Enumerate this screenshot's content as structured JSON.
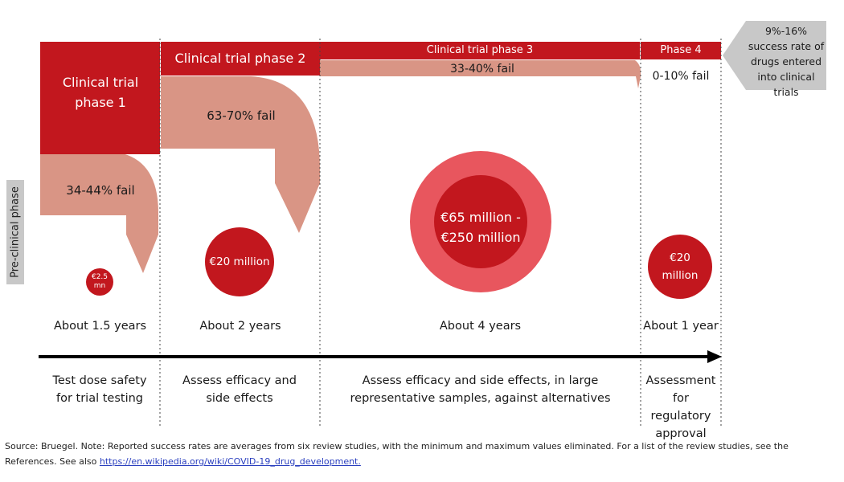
{
  "preclinical_label": "Pre-clinical phase",
  "success_note": "9%-16% success rate of drugs entered into clinical trials",
  "phases": [
    {
      "name": "Clinical trial phase 1",
      "fail": "34-44% fail",
      "cost": "€2.5 mn",
      "duration": "About 1.5 years",
      "purpose": "Test dose safety for trial testing"
    },
    {
      "name": "Clinical trial phase 2",
      "fail": "63-70% fail",
      "cost": "€20 million",
      "duration": "About 2 years",
      "purpose": "Assess efficacy and side effects"
    },
    {
      "name": "Clinical trial phase 3",
      "fail": "33-40% fail",
      "cost": "€65 million - €250 million",
      "duration": "About 4 years",
      "purpose": "Assess efficacy and side effects, in large representative samples, against alternatives"
    },
    {
      "name": "Phase 4",
      "fail": "0-10% fail",
      "cost": "€20 million",
      "duration": "About 1 year",
      "purpose": "Assessment for regulatory approval"
    }
  ],
  "footer": {
    "text": "Source: Bruegel. Note: Reported success rates are averages from six review studies, with the minimum and maximum values eliminated. For a list of the review studies, see the References. See also",
    "link": "https://en.wikipedia.org/wiki/COVID-19_drug_development."
  },
  "colors": {
    "dark_red": "#c2171e",
    "salmon": "#d99585",
    "light_red": "#e8565e",
    "grey": "#c8c8c8"
  }
}
